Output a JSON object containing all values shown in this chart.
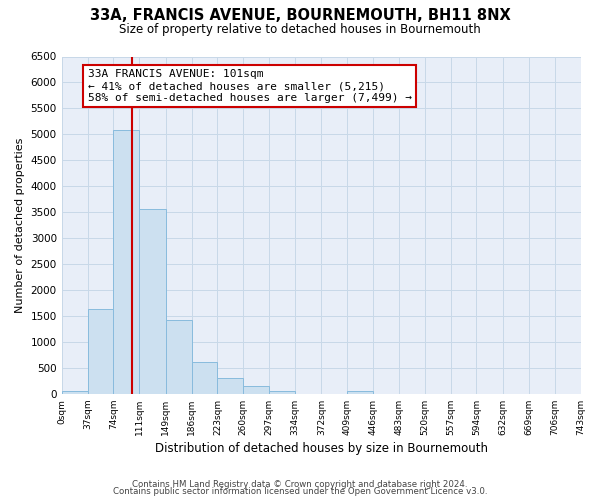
{
  "title": "33A, FRANCIS AVENUE, BOURNEMOUTH, BH11 8NX",
  "subtitle": "Size of property relative to detached houses in Bournemouth",
  "xlabel": "Distribution of detached houses by size in Bournemouth",
  "ylabel": "Number of detached properties",
  "bar_edges": [
    0,
    37,
    74,
    111,
    149,
    186,
    223,
    260,
    297,
    334,
    372,
    409,
    446,
    483,
    520,
    557,
    594,
    632,
    669,
    706,
    743
  ],
  "bar_heights": [
    50,
    1640,
    5080,
    3570,
    1420,
    610,
    300,
    150,
    60,
    0,
    0,
    50,
    0,
    0,
    0,
    0,
    0,
    0,
    0,
    0
  ],
  "bar_color": "#cce0f0",
  "bar_edge_color": "#88bbdd",
  "property_line_x": 101,
  "ylim": [
    0,
    6500
  ],
  "yticks": [
    0,
    500,
    1000,
    1500,
    2000,
    2500,
    3000,
    3500,
    4000,
    4500,
    5000,
    5500,
    6000,
    6500
  ],
  "annotation_title": "33A FRANCIS AVENUE: 101sqm",
  "annotation_line1": "← 41% of detached houses are smaller (5,215)",
  "annotation_line2": "58% of semi-detached houses are larger (7,499) →",
  "annotation_box_facecolor": "#ffffff",
  "annotation_border_color": "#cc0000",
  "property_line_color": "#cc0000",
  "grid_color": "#c8d8e8",
  "tick_labels": [
    "0sqm",
    "37sqm",
    "74sqm",
    "111sqm",
    "149sqm",
    "186sqm",
    "223sqm",
    "260sqm",
    "297sqm",
    "334sqm",
    "372sqm",
    "409sqm",
    "446sqm",
    "483sqm",
    "520sqm",
    "557sqm",
    "594sqm",
    "632sqm",
    "669sqm",
    "706sqm",
    "743sqm"
  ],
  "footer1": "Contains HM Land Registry data © Crown copyright and database right 2024.",
  "footer2": "Contains public sector information licensed under the Open Government Licence v3.0.",
  "plot_bg_color": "#e8eef8",
  "fig_bg_color": "#ffffff"
}
